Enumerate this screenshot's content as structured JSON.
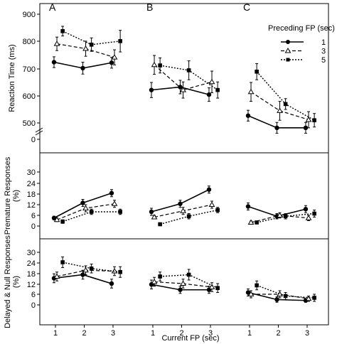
{
  "chart_data": {
    "type": "line",
    "panel_labels": [
      "A",
      "B",
      "C"
    ],
    "xlabel": "Current FP (sec)",
    "x_ticks": [
      1,
      2,
      3
    ],
    "legend": {
      "title": "Preceding FP (sec)",
      "placement": "top-right",
      "entries": [
        {
          "label": "1",
          "style": "solid",
          "marker": "circle"
        },
        {
          "label": "3",
          "style": "dashed",
          "marker": "open-triangle"
        },
        {
          "label": "5",
          "style": "dotted",
          "marker": "square"
        }
      ]
    },
    "rows": [
      {
        "ylabel": "Reaction Time (ms)",
        "y_ticks": [
          "900",
          "800",
          "700",
          "600",
          "500",
          "0"
        ],
        "axis_break": true,
        "ylim": [
          450,
          930
        ],
        "groups": [
          {
            "panel": "A",
            "series": [
              {
                "name": "1",
                "x": [
                  0.95,
                  1.95,
                  2.95
                ],
                "y": [
                  725,
                  703,
                  723
                ],
                "err": [
                  20,
                  22,
                  20
                ]
              },
              {
                "name": "3",
                "x": [
                  1.05,
                  2.05,
                  3.05
                ],
                "y": [
                  793,
                  775,
                  743
                ],
                "err": [
                  25,
                  28,
                  28
                ]
              },
              {
                "name": "5",
                "x": [
                  1.25,
                  2.25,
                  3.25
                ],
                "y": [
                  840,
                  790,
                  803
                ],
                "err": [
                  18,
                  25,
                  40
                ]
              }
            ]
          },
          {
            "panel": "B",
            "series": [
              {
                "name": "1",
                "x": [
                  0.95,
                  1.95,
                  2.95
                ],
                "y": [
                  622,
                  633,
                  605
                ],
                "err": [
                  28,
                  25,
                  25
                ]
              },
              {
                "name": "3",
                "x": [
                  1.05,
                  2.05,
                  3.05
                ],
                "y": [
                  715,
                  622,
                  652
                ],
                "err": [
                  35,
                  30,
                  40
                ]
              },
              {
                "name": "5",
                "x": [
                  1.25,
                  2.25,
                  3.25
                ],
                "y": [
                  713,
                  695,
                  622
                ],
                "err": [
                  28,
                  35,
                  30
                ]
              }
            ]
          },
          {
            "panel": "C",
            "series": [
              {
                "name": "1",
                "x": [
                  0.95,
                  1.95,
                  2.95
                ],
                "y": [
                  527,
                  482,
                  482
                ],
                "err": [
                  20,
                  20,
                  20
                ]
              },
              {
                "name": "3",
                "x": [
                  1.05,
                  2.05,
                  3.05
                ],
                "y": [
                  615,
                  545,
                  512
                ],
                "err": [
                  35,
                  35,
                  30
                ]
              },
              {
                "name": "5",
                "x": [
                  1.25,
                  2.25,
                  3.25
                ],
                "y": [
                  690,
                  570,
                  510
                ],
                "err": [
                  30,
                  20,
                  25
                ]
              }
            ]
          }
        ]
      },
      {
        "ylabel": "Premature Responses (%)",
        "y_ticks": [
          "30",
          "24",
          "18",
          "12",
          "6",
          "0"
        ],
        "ylim": [
          -2,
          33
        ],
        "groups": [
          {
            "panel": "A",
            "series": [
              {
                "name": "1",
                "x": [
                  0.95,
                  1.95,
                  2.95
                ],
                "y": [
                  4.5,
                  13,
                  18.5
                ],
                "err": [
                  1,
                  2,
                  2
                ]
              },
              {
                "name": "3",
                "x": [
                  1.05,
                  2.05,
                  3.05
                ],
                "y": [
                  3.5,
                  10,
                  12.5
                ],
                "err": [
                  1,
                  2,
                  2
                ]
              },
              {
                "name": "5",
                "x": [
                  1.25,
                  2.25,
                  3.25
                ],
                "y": [
                  2.5,
                  8,
                  8
                ],
                "err": [
                  1,
                  1.5,
                  1.5
                ]
              }
            ]
          },
          {
            "panel": "B",
            "series": [
              {
                "name": "1",
                "x": [
                  0.95,
                  1.95,
                  2.95
                ],
                "y": [
                  8,
                  12.5,
                  20.5
                ],
                "err": [
                  2,
                  2,
                  2
                ]
              },
              {
                "name": "3",
                "x": [
                  1.05,
                  2.05,
                  3.05
                ],
                "y": [
                  5,
                  8.5,
                  12
                ],
                "err": [
                  1,
                  2,
                  2
                ]
              },
              {
                "name": "5",
                "x": [
                  1.25,
                  2.25,
                  3.25
                ],
                "y": [
                  1,
                  5.5,
                  9
                ],
                "err": [
                  0.8,
                  1.5,
                  1.5
                ]
              }
            ]
          },
          {
            "panel": "C",
            "series": [
              {
                "name": "1",
                "x": [
                  0.95,
                  1.95,
                  2.95
                ],
                "y": [
                  11,
                  5.5,
                  9.5
                ],
                "err": [
                  2,
                  1.5,
                  2
                ]
              },
              {
                "name": "3",
                "x": [
                  1.05,
                  2.05,
                  3.05
                ],
                "y": [
                  2,
                  6,
                  4.5
                ],
                "err": [
                  0.8,
                  1.5,
                  1.5
                ]
              },
              {
                "name": "5",
                "x": [
                  1.25,
                  2.25,
                  3.25
                ],
                "y": [
                  2,
                  5.5,
                  7
                ],
                "err": [
                  0.8,
                  1.5,
                  2
                ]
              }
            ]
          }
        ]
      },
      {
        "ylabel": "Delayed & Null Responses (%)",
        "y_ticks": [
          "30",
          "24",
          "18",
          "12",
          "6",
          "0"
        ],
        "ylim": [
          -2,
          33
        ],
        "groups": [
          {
            "panel": "A",
            "series": [
              {
                "name": "1",
                "x": [
                  0.95,
                  1.95,
                  2.95
                ],
                "y": [
                  15,
                  17,
                  12
                ],
                "err": [
                  2.5,
                  2.5,
                  2.5
                ]
              },
              {
                "name": "3",
                "x": [
                  1.05,
                  2.05,
                  3.05
                ],
                "y": [
                  16,
                  19.5,
                  19
                ],
                "err": [
                  2.5,
                  2.5,
                  2.5
                ]
              },
              {
                "name": "5",
                "x": [
                  1.25,
                  2.25,
                  3.25
                ],
                "y": [
                  24,
                  20.5,
                  18.5
                ],
                "err": [
                  3,
                  2.5,
                  3
                ]
              }
            ]
          },
          {
            "panel": "B",
            "series": [
              {
                "name": "1",
                "x": [
                  0.95,
                  1.95,
                  2.95
                ],
                "y": [
                  11.5,
                  8.5,
                  8.5
                ],
                "err": [
                  2.5,
                  2,
                  2
                ]
              },
              {
                "name": "3",
                "x": [
                  1.05,
                  2.05,
                  3.05
                ],
                "y": [
                  13,
                  12,
                  10
                ],
                "err": [
                  2.5,
                  2.5,
                  2.5
                ]
              },
              {
                "name": "5",
                "x": [
                  1.25,
                  2.25,
                  3.25
                ],
                "y": [
                  16,
                  17,
                  9.5
                ],
                "err": [
                  2.5,
                  3,
                  2.5
                ]
              }
            ]
          },
          {
            "panel": "C",
            "series": [
              {
                "name": "1",
                "x": [
                  0.95,
                  1.95,
                  2.95
                ],
                "y": [
                  7,
                  3,
                  2.5
                ],
                "err": [
                  2,
                  1.5,
                  1
                ]
              },
              {
                "name": "3",
                "x": [
                  1.05,
                  2.05,
                  3.05
                ],
                "y": [
                  6,
                  6,
                  3.5
                ],
                "err": [
                  2,
                  2,
                  1.5
                ]
              },
              {
                "name": "5",
                "x": [
                  1.25,
                  2.25,
                  3.25
                ],
                "y": [
                  11,
                  5,
                  4
                ],
                "err": [
                  2.5,
                  2,
                  2
                ]
              }
            ]
          }
        ]
      }
    ]
  }
}
